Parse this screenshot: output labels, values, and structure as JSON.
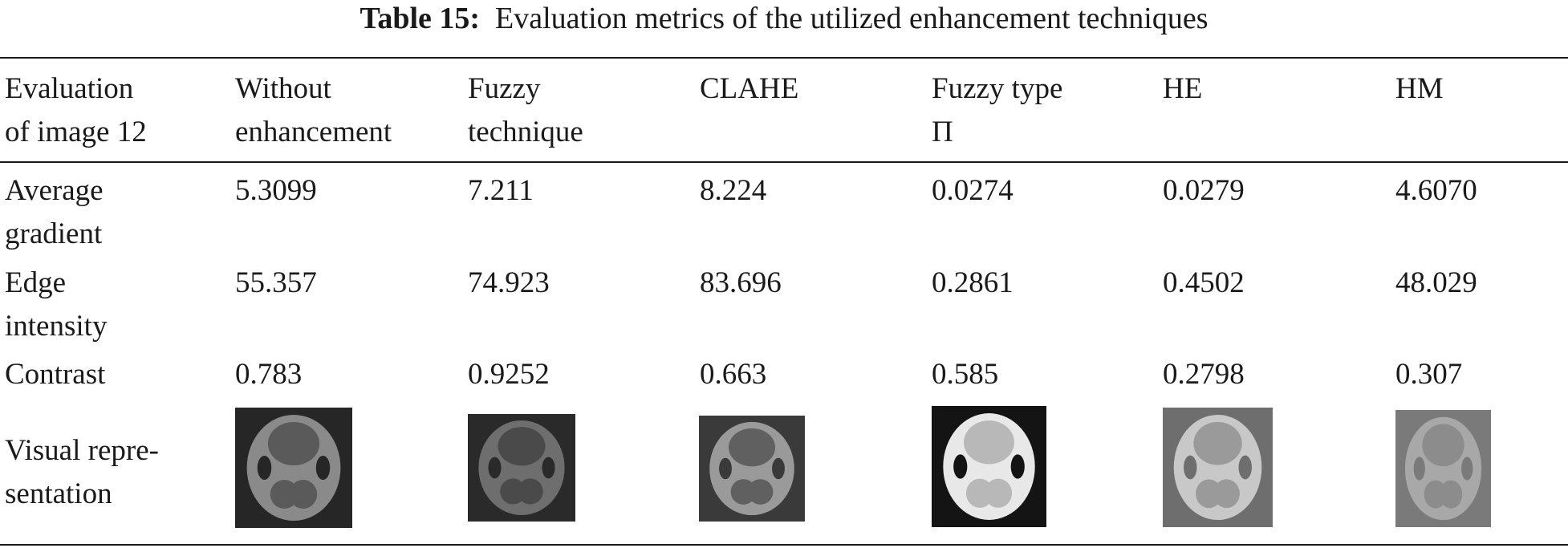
{
  "caption": {
    "label": "Table 15:",
    "text": "Evaluation metrics of the utilized enhancement techniques"
  },
  "table": {
    "header": [
      [
        "Evaluation",
        "of image 12"
      ],
      [
        "Without",
        "enhancement"
      ],
      [
        "Fuzzy",
        "technique"
      ],
      [
        "CLAHE"
      ],
      [
        "Fuzzy type",
        "Π"
      ],
      [
        "HE"
      ],
      [
        "HM"
      ]
    ],
    "rows": [
      {
        "label": [
          "Average",
          "gradient"
        ],
        "values": [
          "5.3099",
          "7.211",
          "8.224",
          "0.0274",
          "0.0279",
          "4.6070"
        ]
      },
      {
        "label": [
          "Edge",
          "intensity"
        ],
        "values": [
          "55.357",
          "74.923",
          "83.696",
          "0.2861",
          "0.4502",
          "48.029"
        ]
      },
      {
        "label": [
          "Contrast"
        ],
        "values": [
          "0.783",
          "0.9252",
          "0.663",
          "0.585",
          "0.2798",
          "0.307"
        ]
      }
    ],
    "visual_label": [
      "Visual repre-",
      "sentation"
    ]
  }
}
